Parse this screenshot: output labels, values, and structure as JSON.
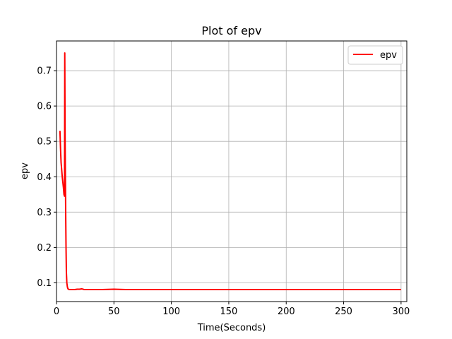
{
  "chart_data": {
    "type": "line",
    "title": "Plot of epv",
    "xlabel": "Time(Seconds)",
    "ylabel": "epv",
    "xlim": [
      0,
      305
    ],
    "ylim": [
      0.047,
      0.784
    ],
    "xticks": [
      0,
      50,
      100,
      150,
      200,
      250,
      300
    ],
    "yticks": [
      0.1,
      0.2,
      0.3,
      0.4,
      0.5,
      0.6,
      0.7
    ],
    "ytick_labels": [
      "0.1",
      "0.2",
      "0.3",
      "0.4",
      "0.5",
      "0.6",
      "0.7"
    ],
    "grid": true,
    "legend_position": "top-right",
    "series": [
      {
        "name": "epv",
        "color": "#ff0000",
        "x": [
          3,
          3.5,
          4,
          4.5,
          5,
          5.5,
          6,
          6.5,
          7,
          7.2,
          7.5,
          8,
          8.3,
          8.6,
          9,
          9.5,
          10,
          11,
          12,
          14,
          16,
          18,
          20,
          22,
          24,
          30,
          40,
          50,
          60,
          80,
          100,
          120,
          150,
          180,
          200,
          220,
          250,
          280,
          300
        ],
        "y": [
          0.53,
          0.48,
          0.44,
          0.42,
          0.4,
          0.385,
          0.37,
          0.35,
          0.345,
          0.75,
          0.5,
          0.3,
          0.2,
          0.13,
          0.1,
          0.088,
          0.083,
          0.081,
          0.081,
          0.081,
          0.081,
          0.082,
          0.082,
          0.083,
          0.081,
          0.081,
          0.081,
          0.082,
          0.081,
          0.081,
          0.081,
          0.081,
          0.081,
          0.081,
          0.081,
          0.081,
          0.081,
          0.081,
          0.081
        ]
      }
    ]
  }
}
